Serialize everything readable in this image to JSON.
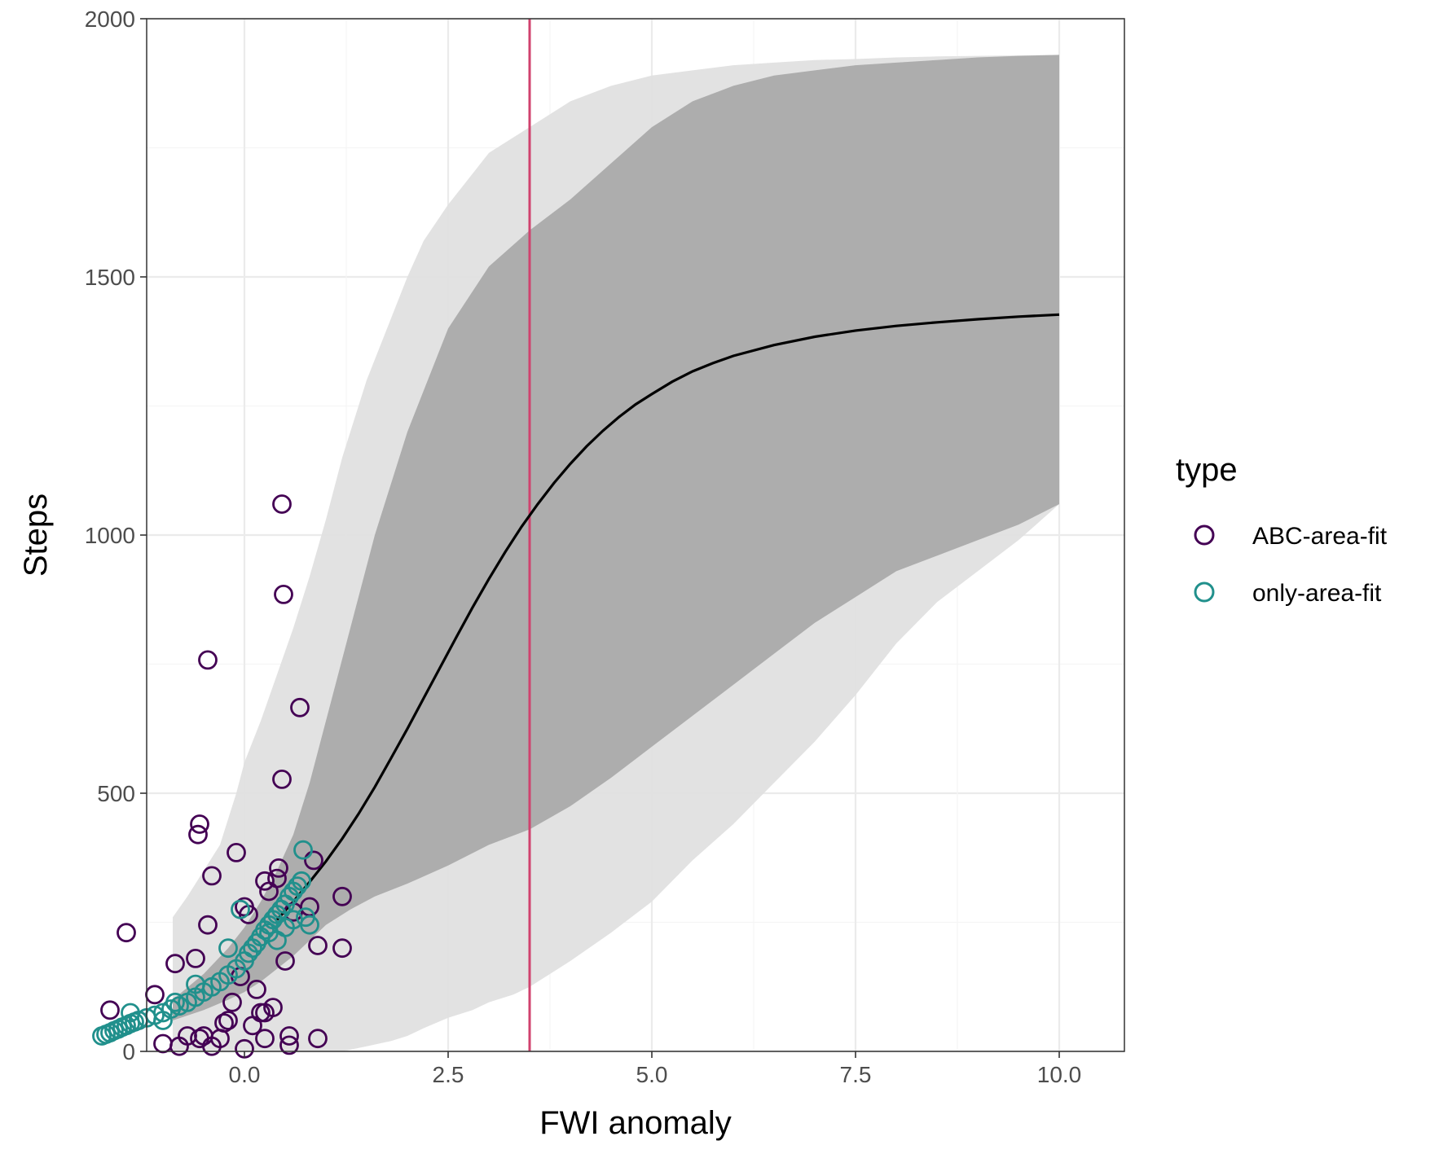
{
  "chart_data": {
    "type": "scatter",
    "xlabel": "FWI anomaly",
    "ylabel": "Steps",
    "xlim": [
      -1.2,
      10.8
    ],
    "ylim": [
      0,
      2000
    ],
    "xticks": [
      0.0,
      2.5,
      5.0,
      7.5,
      10.0
    ],
    "xtick_labels": [
      "0.0",
      "2.5",
      "5.0",
      "7.5",
      "10.0"
    ],
    "yticks": [
      0,
      500,
      1000,
      1500,
      2000
    ],
    "ytick_labels": [
      "0",
      "500",
      "1000",
      "1500",
      "2000"
    ],
    "grid": true,
    "vline": {
      "x": 3.5,
      "color": "#d0426e"
    },
    "bands": [
      {
        "level": "outer",
        "color": "#e0e0e0",
        "x": [
          -0.88,
          -0.7,
          -0.5,
          -0.3,
          -0.1,
          0.0,
          0.2,
          0.4,
          0.6,
          0.8,
          1.0,
          1.2,
          1.5,
          1.8,
          2.0,
          2.2,
          2.5,
          2.8,
          3.0,
          3.3,
          3.5,
          3.8,
          4.0,
          4.5,
          5.0,
          5.5,
          6.0,
          6.5,
          7.0,
          7.5,
          8.0,
          8.5,
          9.0,
          9.5,
          10.0
        ],
        "lower": [
          0,
          0,
          0,
          0,
          0,
          0,
          0,
          0,
          0,
          0,
          0,
          0,
          10,
          20,
          30,
          45,
          65,
          80,
          95,
          110,
          125,
          155,
          175,
          230,
          290,
          370,
          440,
          520,
          600,
          690,
          790,
          870,
          930,
          990,
          1060
        ],
        "upper": [
          260,
          300,
          350,
          400,
          500,
          560,
          640,
          730,
          820,
          920,
          1030,
          1150,
          1300,
          1420,
          1500,
          1570,
          1640,
          1700,
          1740,
          1770,
          1790,
          1820,
          1840,
          1870,
          1890,
          1900,
          1910,
          1915,
          1920,
          1922,
          1925,
          1927,
          1928,
          1929,
          1930
        ]
      },
      {
        "level": "inner",
        "color": "#aaaaaa",
        "x": [
          -0.88,
          -0.5,
          -0.2,
          0.0,
          0.2,
          0.4,
          0.6,
          0.8,
          1.0,
          1.3,
          1.6,
          2.0,
          2.5,
          3.0,
          3.5,
          4.0,
          4.5,
          5.0,
          5.5,
          6.0,
          6.5,
          7.0,
          7.5,
          8.0,
          8.5,
          9.0,
          9.5,
          10.0
        ],
        "lower": [
          60,
          80,
          100,
          115,
          135,
          160,
          185,
          215,
          245,
          275,
          300,
          325,
          360,
          400,
          430,
          475,
          530,
          590,
          650,
          710,
          770,
          830,
          880,
          930,
          960,
          990,
          1020,
          1060
        ],
        "upper": [
          100,
          150,
          200,
          240,
          290,
          350,
          420,
          520,
          640,
          820,
          1000,
          1200,
          1400,
          1520,
          1590,
          1650,
          1720,
          1790,
          1840,
          1870,
          1890,
          1900,
          1910,
          1915,
          1920,
          1925,
          1928,
          1930
        ]
      }
    ],
    "fit_line": {
      "color": "#000000",
      "x": [
        0.4,
        0.6,
        0.8,
        1.0,
        1.2,
        1.4,
        1.6,
        1.8,
        2.0,
        2.2,
        2.4,
        2.6,
        2.8,
        3.0,
        3.2,
        3.4,
        3.6,
        3.8,
        4.0,
        4.2,
        4.4,
        4.6,
        4.8,
        5.0,
        5.25,
        5.5,
        5.75,
        6.0,
        6.5,
        7.0,
        7.5,
        8.0,
        8.5,
        9.0,
        9.5,
        10.0
      ],
      "y": [
        255,
        290,
        328,
        368,
        412,
        460,
        512,
        568,
        625,
        684,
        743,
        802,
        860,
        915,
        967,
        1016,
        1060,
        1101,
        1138,
        1172,
        1202,
        1229,
        1253,
        1273,
        1297,
        1317,
        1333,
        1347,
        1368,
        1384,
        1396,
        1405,
        1412,
        1418,
        1423,
        1427
      ]
    },
    "series": [
      {
        "name": "ABC-area-fit",
        "color": "#440154",
        "points": [
          [
            0.46,
            1060
          ],
          [
            0.48,
            885
          ],
          [
            -0.45,
            758
          ],
          [
            0.68,
            666
          ],
          [
            0.46,
            527
          ],
          [
            -0.55,
            440
          ],
          [
            -0.57,
            420
          ],
          [
            -0.1,
            385
          ],
          [
            0.85,
            370
          ],
          [
            -0.4,
            340
          ],
          [
            0.4,
            335
          ],
          [
            0.42,
            355
          ],
          [
            1.2,
            300
          ],
          [
            0.25,
            330
          ],
          [
            0.3,
            310
          ],
          [
            0.8,
            280
          ],
          [
            0.0,
            280
          ],
          [
            0.05,
            265
          ],
          [
            0.6,
            270
          ],
          [
            -0.45,
            245
          ],
          [
            -1.45,
            230
          ],
          [
            0.9,
            205
          ],
          [
            1.2,
            200
          ],
          [
            0.5,
            175
          ],
          [
            -0.6,
            180
          ],
          [
            -0.85,
            170
          ],
          [
            -1.1,
            110
          ],
          [
            -1.65,
            80
          ],
          [
            -1.3,
            60
          ],
          [
            -0.2,
            60
          ],
          [
            0.2,
            75
          ],
          [
            0.25,
            75
          ],
          [
            -0.7,
            30
          ],
          [
            -0.5,
            30
          ],
          [
            -0.3,
            25
          ],
          [
            0.55,
            30
          ],
          [
            0.9,
            25
          ],
          [
            -1.0,
            15
          ],
          [
            -0.8,
            10
          ],
          [
            -0.4,
            10
          ],
          [
            0.0,
            5
          ],
          [
            0.55,
            12
          ],
          [
            0.25,
            25
          ],
          [
            -0.55,
            25
          ],
          [
            0.1,
            50
          ],
          [
            -0.25,
            55
          ],
          [
            0.35,
            85
          ],
          [
            -0.15,
            95
          ],
          [
            0.15,
            120
          ],
          [
            -0.05,
            145
          ]
        ]
      },
      {
        "name": "only-area-fit",
        "color": "#21908c",
        "points": [
          [
            -1.75,
            30
          ],
          [
            -1.7,
            33
          ],
          [
            -1.65,
            36
          ],
          [
            -1.6,
            40
          ],
          [
            -1.55,
            43
          ],
          [
            -1.5,
            47
          ],
          [
            -1.45,
            50
          ],
          [
            -1.4,
            54
          ],
          [
            -1.35,
            57
          ],
          [
            -1.3,
            60
          ],
          [
            -1.2,
            65
          ],
          [
            -1.1,
            70
          ],
          [
            -1.0,
            75
          ],
          [
            -0.9,
            82
          ],
          [
            -0.8,
            88
          ],
          [
            -0.7,
            95
          ],
          [
            -0.6,
            105
          ],
          [
            -0.5,
            115
          ],
          [
            -0.4,
            125
          ],
          [
            -0.3,
            135
          ],
          [
            -0.2,
            148
          ],
          [
            -0.1,
            160
          ],
          [
            0.0,
            175
          ],
          [
            0.05,
            190
          ],
          [
            0.1,
            200
          ],
          [
            0.15,
            210
          ],
          [
            0.2,
            222
          ],
          [
            0.25,
            235
          ],
          [
            0.3,
            245
          ],
          [
            0.35,
            255
          ],
          [
            0.4,
            265
          ],
          [
            0.45,
            275
          ],
          [
            0.5,
            285
          ],
          [
            0.55,
            300
          ],
          [
            0.6,
            310
          ],
          [
            0.65,
            320
          ],
          [
            0.7,
            330
          ],
          [
            0.72,
            390
          ],
          [
            0.8,
            245
          ],
          [
            0.75,
            260
          ],
          [
            -0.2,
            200
          ],
          [
            -0.05,
            275
          ],
          [
            -0.6,
            130
          ],
          [
            -1.4,
            75
          ],
          [
            -1.0,
            60
          ],
          [
            -0.85,
            95
          ],
          [
            0.3,
            230
          ],
          [
            0.5,
            240
          ],
          [
            0.6,
            255
          ],
          [
            0.4,
            215
          ]
        ]
      }
    ],
    "legend": {
      "title": "type",
      "placement": "right",
      "entries": [
        {
          "label": "ABC-area-fit",
          "color": "#440154"
        },
        {
          "label": "only-area-fit",
          "color": "#21908c"
        }
      ]
    }
  }
}
